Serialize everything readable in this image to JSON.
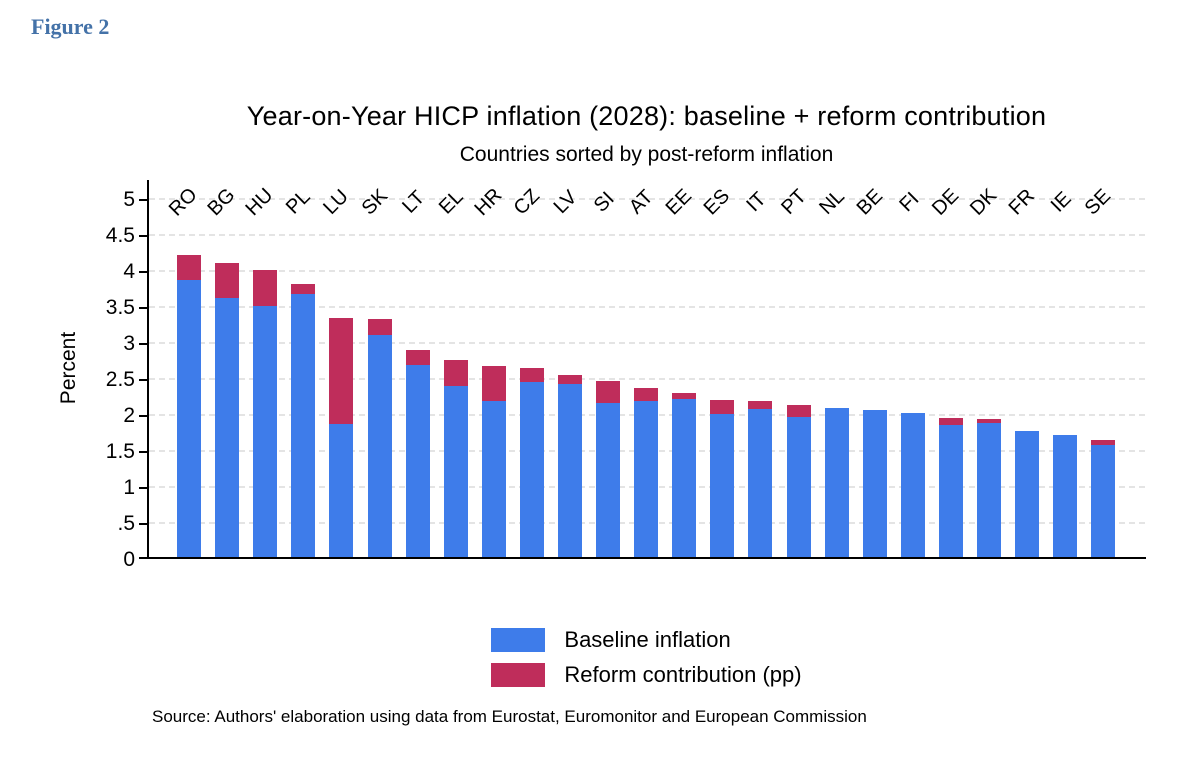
{
  "figure_label": "Figure 2",
  "chart": {
    "title": "Year-on-Year HICP inflation (2028): baseline + reform contribution",
    "subtitle": "Countries sorted by post-reform inflation",
    "ylabel": "Percent"
  },
  "legend": [
    {
      "label": "Baseline inflation",
      "color": "#3e7cea"
    },
    {
      "label": "Reform contribution (pp)",
      "color": "#bf2d5b"
    }
  ],
  "source": "Source: Authors' elaboration using data from Eurostat, Euromonitor and European Commission",
  "colors": {
    "baseline_bar": "#3e7cea",
    "reform_bar": "#bf2d5b",
    "figure_label": "#4472a8",
    "gridline": "#e4e4e4",
    "axis": "#000000"
  },
  "chart_data": {
    "type": "bar",
    "stacked": true,
    "title": "Year-on-Year HICP inflation (2028): baseline + reform contribution",
    "subtitle": "Countries sorted by post-reform inflation",
    "xlabel": "",
    "ylabel": "Percent",
    "ylim": [
      0,
      5.25
    ],
    "ytick_labels": [
      "0",
      ".5",
      "1",
      "1.5",
      "2",
      "2.5",
      "3",
      "3.5",
      "4",
      "4.5",
      "5"
    ],
    "ytick_values": [
      0,
      0.5,
      1,
      1.5,
      2,
      2.5,
      3,
      3.5,
      4,
      4.5,
      5
    ],
    "grid": "horizontal-dashed",
    "legend_position": "bottom",
    "categories": [
      "RO",
      "BG",
      "HU",
      "PL",
      "LU",
      "SK",
      "LT",
      "EL",
      "HR",
      "CZ",
      "LV",
      "SI",
      "AT",
      "EE",
      "ES",
      "IT",
      "PT",
      "NL",
      "BE",
      "FI",
      "DE",
      "DK",
      "FR",
      "IE",
      "SE"
    ],
    "series": [
      {
        "name": "Baseline inflation",
        "color": "#3e7cea",
        "values": [
          3.85,
          3.6,
          3.48,
          3.65,
          1.85,
          3.08,
          2.66,
          2.38,
          2.17,
          2.43,
          2.4,
          2.14,
          2.16,
          2.2,
          1.99,
          2.05,
          1.94,
          2.07,
          2.04,
          2.0,
          1.84,
          1.86,
          1.75,
          1.69,
          1.56
        ]
      },
      {
        "name": "Reform contribution (pp)",
        "color": "#bf2d5b",
        "values": [
          0.35,
          0.48,
          0.5,
          0.14,
          1.47,
          0.22,
          0.21,
          0.36,
          0.48,
          0.19,
          0.12,
          0.3,
          0.18,
          0.09,
          0.19,
          0.11,
          0.16,
          0.0,
          0.0,
          0.0,
          0.1,
          0.05,
          0.0,
          0.0,
          0.07
        ]
      }
    ]
  }
}
